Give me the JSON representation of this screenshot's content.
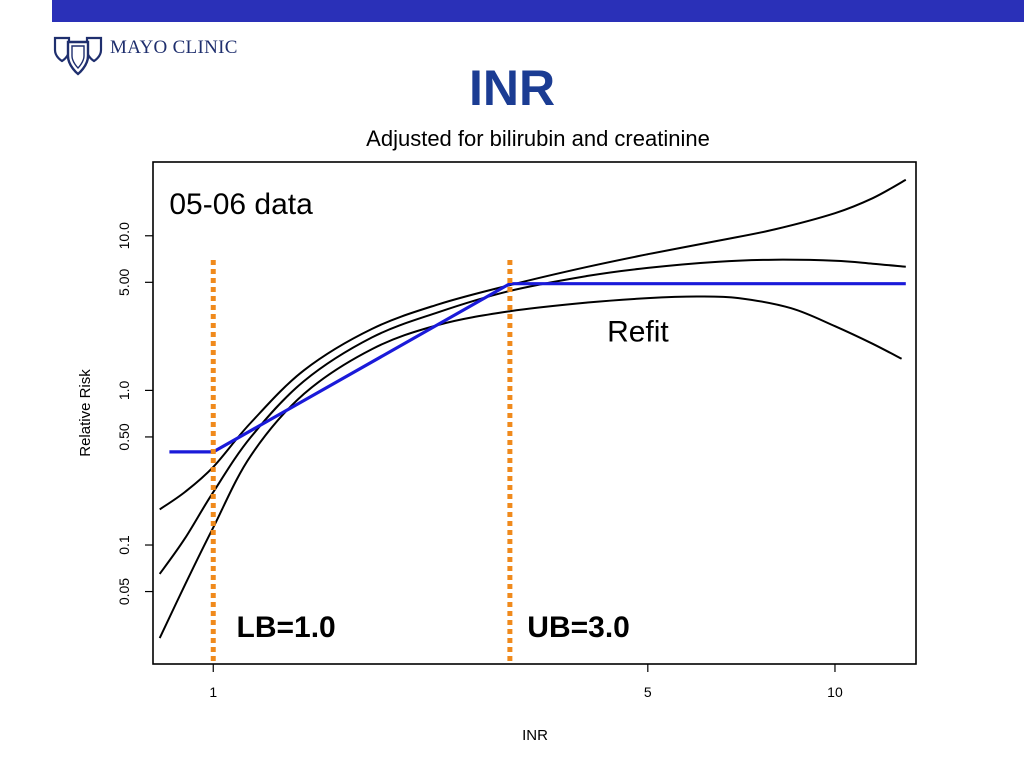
{
  "slide": {
    "title": "INR",
    "brand_name": "MAYO CLINIC",
    "logo_icon": "mayo-clinic-shields-icon",
    "colors": {
      "top_bar": "#2a30b8",
      "title": "#1b3c93",
      "logo": "#1f2f6e",
      "refit_line": "#1a1ad9",
      "bound_line": "#f08a1c",
      "curve": "#000000"
    }
  },
  "chart_data": {
    "type": "line",
    "title": "Adjusted for bilirubin and creatinine",
    "xlabel": "INR",
    "ylabel": "Relative Risk",
    "x_scale": "log",
    "y_scale": "log",
    "xlim": [
      0.8,
      13.5
    ],
    "ylim": [
      0.017,
      30
    ],
    "x_ticks": [
      {
        "value": 1,
        "label": "1"
      },
      {
        "value": 5,
        "label": "5"
      },
      {
        "value": 10,
        "label": "10"
      }
    ],
    "y_ticks": [
      {
        "value": 0.05,
        "label": "0.05"
      },
      {
        "value": 0.1,
        "label": "0.1"
      },
      {
        "value": 0.5,
        "label": "0.50"
      },
      {
        "value": 1.0,
        "label": "1.0"
      },
      {
        "value": 5.0,
        "label": "5.00"
      },
      {
        "value": 10.0,
        "label": "10.0"
      }
    ],
    "grid": false,
    "annotations": [
      {
        "text": "05-06 data",
        "x": 0.85,
        "y": 16
      },
      {
        "text": "Refit",
        "x": 4.3,
        "y": 2.4
      }
    ],
    "bounds": [
      {
        "label": "LB=1.0",
        "x": 1.0,
        "label_x": 1.09
      },
      {
        "label": "UB=3.0",
        "x": 3.0,
        "label_x": 3.2
      }
    ],
    "bound_label_y": 0.03,
    "series": [
      {
        "role": "upper",
        "x": [
          0.82,
          0.9,
          1.0,
          1.15,
          1.4,
          1.8,
          2.3,
          3.0,
          4.0,
          5.0,
          6.5,
          8.0,
          10.0,
          11.5,
          13.0
        ],
        "y": [
          0.17,
          0.22,
          0.32,
          0.62,
          1.35,
          2.5,
          3.6,
          4.8,
          6.3,
          7.6,
          9.3,
          11.0,
          14.0,
          17.5,
          23.0
        ]
      },
      {
        "role": "estimate",
        "x": [
          0.82,
          0.9,
          1.0,
          1.15,
          1.4,
          1.8,
          2.3,
          3.0,
          4.0,
          5.0,
          6.5,
          8.0,
          10.0,
          11.5,
          13.0
        ],
        "y": [
          0.065,
          0.11,
          0.22,
          0.5,
          1.15,
          2.2,
          3.2,
          4.4,
          5.5,
          6.2,
          6.8,
          7.0,
          6.9,
          6.6,
          6.3
        ]
      },
      {
        "role": "lower",
        "x": [
          0.82,
          0.9,
          1.0,
          1.15,
          1.4,
          1.8,
          2.3,
          3.0,
          4.0,
          5.0,
          6.0,
          7.0,
          8.5,
          10.0,
          11.5,
          12.8
        ],
        "y": [
          0.025,
          0.055,
          0.13,
          0.38,
          0.95,
          1.85,
          2.65,
          3.25,
          3.7,
          3.95,
          4.05,
          3.95,
          3.4,
          2.6,
          2.0,
          1.6
        ]
      },
      {
        "role": "refit",
        "x": [
          0.85,
          1.0,
          3.0,
          13.0
        ],
        "y": [
          0.4,
          0.4,
          4.9,
          4.9
        ]
      }
    ]
  }
}
